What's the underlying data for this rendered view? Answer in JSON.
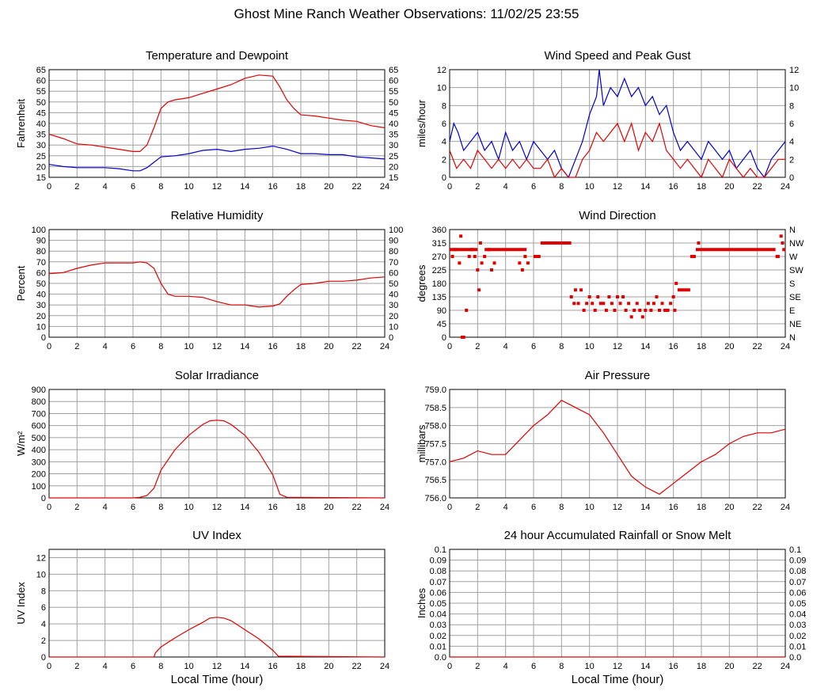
{
  "page": {
    "title": "Ghost Mine Ranch Weather Observations: 11/02/25 23:55"
  },
  "colors": {
    "red": "#e00000",
    "blue": "#0000cc",
    "grid": "#a0a0a0"
  },
  "chart_data": [
    {
      "id": "temperature",
      "type": "line",
      "title": "Temperature and Dewpoint",
      "xlabel": "",
      "ylabel": "Fahrenheit",
      "xlim": [
        0,
        24
      ],
      "ylim": [
        15,
        65
      ],
      "yticks": [
        15,
        20,
        25,
        30,
        35,
        40,
        45,
        50,
        55,
        60,
        65
      ],
      "right_ticks": [
        "15",
        "20",
        "25",
        "30",
        "35",
        "40",
        "45",
        "50",
        "55",
        "60",
        "65"
      ],
      "grid": true,
      "series": [
        {
          "color": "red",
          "x": [
            0,
            1,
            2,
            3,
            4,
            5,
            6,
            6.5,
            7,
            7.5,
            8,
            8.5,
            9,
            10,
            11,
            12,
            13,
            14,
            15,
            16,
            16.5,
            17,
            17.5,
            18,
            19,
            20,
            21,
            22,
            23,
            24
          ],
          "y": [
            35,
            33,
            30.5,
            30,
            29,
            28,
            27,
            27,
            30,
            38,
            47,
            50,
            51,
            52,
            54,
            56,
            58,
            61,
            62.5,
            62,
            57,
            51,
            47,
            44,
            43.5,
            42.5,
            41.5,
            41,
            39,
            38
          ]
        },
        {
          "color": "blue",
          "x": [
            0,
            1,
            2,
            3,
            4,
            5,
            6,
            6.5,
            7,
            7.5,
            8,
            9,
            10,
            11,
            12,
            13,
            14,
            15,
            16,
            17,
            18,
            19,
            20,
            21,
            22,
            23,
            24
          ],
          "y": [
            21,
            20,
            19.5,
            19.5,
            19.5,
            19,
            18,
            18,
            19.5,
            22,
            24.5,
            25,
            26,
            27.5,
            28,
            27,
            28,
            28.5,
            29.5,
            28,
            26,
            26,
            25.5,
            25.5,
            24.5,
            24,
            23.5
          ]
        }
      ]
    },
    {
      "id": "wind-speed",
      "type": "line",
      "title": "Wind Speed and Peak Gust",
      "xlabel": "",
      "ylabel": "miles/hour",
      "xlim": [
        0,
        24
      ],
      "ylim": [
        0,
        12
      ],
      "yticks": [
        0,
        2,
        4,
        6,
        8,
        10,
        12
      ],
      "right_ticks": [
        "0",
        "2",
        "4",
        "6",
        "8",
        "10",
        "12"
      ],
      "grid": true,
      "series": [
        {
          "color": "blue",
          "x": [
            0,
            0.3,
            0.6,
            1,
            1.5,
            2,
            2.5,
            3,
            3.5,
            4,
            4.5,
            5,
            5.5,
            6,
            6.5,
            7,
            7.5,
            8,
            8.5,
            9,
            9.5,
            10,
            10.5,
            10.7,
            11,
            11.5,
            12,
            12.5,
            13,
            13.5,
            14,
            14.5,
            15,
            15.5,
            16,
            16.5,
            17,
            17.5,
            18,
            18.5,
            19,
            19.5,
            20,
            20.5,
            21,
            21.5,
            22,
            22.5,
            23,
            23.5,
            24
          ],
          "y": [
            4,
            6,
            5,
            3,
            4,
            5,
            3,
            4,
            2,
            5,
            3,
            4,
            2,
            4,
            3,
            2,
            3,
            1,
            0,
            2,
            4,
            7,
            9,
            12,
            8,
            10,
            9,
            11,
            9,
            10,
            8,
            9,
            7,
            8,
            5,
            3,
            4,
            3,
            2,
            4,
            3,
            2,
            3,
            1,
            2,
            3,
            1,
            0,
            2,
            3,
            4
          ]
        },
        {
          "color": "red",
          "x": [
            0,
            0.5,
            1,
            1.5,
            2,
            2.5,
            3,
            3.5,
            4,
            4.5,
            5,
            5.5,
            6,
            6.5,
            7,
            7.5,
            8,
            8.5,
            9,
            9.5,
            10,
            10.5,
            11,
            11.5,
            12,
            12.5,
            13,
            13.5,
            14,
            14.5,
            15,
            15.5,
            16,
            16.5,
            17,
            17.5,
            18,
            18.5,
            19,
            19.5,
            20,
            20.5,
            21,
            21.5,
            22,
            22.5,
            23,
            23.5,
            24
          ],
          "y": [
            3,
            1,
            2,
            1,
            3,
            2,
            1,
            2,
            1,
            2,
            1,
            2,
            1,
            1,
            2,
            0,
            1,
            0,
            0,
            2,
            3,
            5,
            4,
            5,
            6,
            4,
            6,
            3,
            5,
            4,
            6,
            3,
            2,
            1,
            2,
            1,
            0,
            2,
            1,
            0,
            2,
            1,
            0,
            1,
            0,
            0,
            1,
            2,
            2
          ]
        }
      ]
    },
    {
      "id": "humidity",
      "type": "line",
      "title": "Relative Humidity",
      "xlabel": "",
      "ylabel": "Percent",
      "xlim": [
        0,
        24
      ],
      "ylim": [
        0,
        100
      ],
      "yticks": [
        0,
        10,
        20,
        30,
        40,
        50,
        60,
        70,
        80,
        90,
        100
      ],
      "right_ticks": [
        "0",
        "10",
        "20",
        "30",
        "40",
        "50",
        "60",
        "70",
        "80",
        "90",
        "100"
      ],
      "grid": true,
      "series": [
        {
          "color": "red",
          "x": [
            0,
            1,
            2,
            3,
            4,
            5,
            6,
            6.5,
            7,
            7.5,
            8,
            8.5,
            9,
            10,
            11,
            12,
            13,
            14,
            15,
            16,
            16.5,
            17,
            17.5,
            18,
            19,
            20,
            21,
            22,
            23,
            24
          ],
          "y": [
            59,
            60,
            64,
            67,
            69,
            69,
            69,
            70,
            69,
            64,
            50,
            40,
            38,
            38,
            37,
            33,
            30,
            30,
            28,
            29,
            31,
            38,
            44,
            49,
            50,
            52,
            52,
            53,
            55,
            56
          ]
        }
      ]
    },
    {
      "id": "wind-direction",
      "type": "scatter",
      "title": "Wind Direction",
      "xlabel": "",
      "ylabel": "degrees",
      "xlim": [
        0,
        24
      ],
      "ylim": [
        0,
        360
      ],
      "yticks": [
        0,
        45,
        90,
        135,
        180,
        225,
        270,
        315,
        360
      ],
      "right_ticks": [
        "N",
        "NE",
        "E",
        "SE",
        "S",
        "SW",
        "W",
        "NW",
        "N"
      ],
      "grid": true,
      "series": [
        {
          "color": "red",
          "segments": [
            {
              "x0": 0,
              "x1": 2,
              "y": 293
            },
            {
              "x0": 2.5,
              "x1": 5.5,
              "y": 293
            },
            {
              "x0": 6,
              "x1": 6.5,
              "y": 270
            },
            {
              "x0": 6.5,
              "x1": 8.7,
              "y": 315
            },
            {
              "x0": 17.2,
              "x1": 17.6,
              "y": 270
            },
            {
              "x0": 17.6,
              "x1": 23.3,
              "y": 293
            },
            {
              "x0": 16.3,
              "x1": 17.2,
              "y": 158
            },
            {
              "x0": 23.3,
              "x1": 23.6,
              "y": 270
            }
          ],
          "x": [
            0.2,
            0.4,
            0.7,
            0.8,
            0.9,
            1.0,
            1.2,
            1.4,
            1.6,
            1.8,
            2.0,
            2.1,
            2.2,
            2.3,
            2.5,
            2.8,
            3.0,
            3.2,
            5.0,
            5.2,
            5.4,
            5.6,
            8.7,
            8.9,
            9.0,
            9.2,
            9.4,
            9.6,
            9.8,
            10.0,
            10.2,
            10.4,
            10.6,
            10.8,
            11.0,
            11.2,
            11.4,
            11.6,
            11.8,
            12.0,
            12.2,
            12.4,
            12.6,
            12.8,
            13.0,
            13.2,
            13.4,
            13.6,
            13.8,
            14.0,
            14.2,
            14.4,
            14.6,
            14.8,
            15.0,
            15.2,
            15.4,
            15.6,
            15.8,
            16.0,
            16.1,
            16.2,
            17.8,
            23.7,
            23.8,
            23.9
          ],
          "y": [
            270,
            293,
            248,
            338,
            0,
            0,
            90,
            270,
            293,
            270,
            225,
            158,
            315,
            248,
            270,
            293,
            225,
            248,
            248,
            225,
            270,
            248,
            135,
            113,
            158,
            113,
            158,
            90,
            113,
            135,
            113,
            90,
            135,
            113,
            113,
            90,
            135,
            113,
            90,
            135,
            113,
            135,
            90,
            113,
            68,
            90,
            113,
            90,
            68,
            90,
            113,
            90,
            113,
            135,
            90,
            113,
            90,
            90,
            113,
            135,
            90,
            180,
            315,
            338,
            315,
            293
          ]
        }
      ]
    },
    {
      "id": "solar",
      "type": "line",
      "title": "Solar Irradiance",
      "xlabel": "",
      "ylabel": "W/m²",
      "xlim": [
        0,
        24
      ],
      "ylim": [
        0,
        900
      ],
      "yticks": [
        0,
        100,
        200,
        300,
        400,
        500,
        600,
        700,
        800,
        900
      ],
      "right_ticks": [],
      "grid": true,
      "series": [
        {
          "color": "red",
          "x": [
            0,
            6,
            6.5,
            7,
            7.5,
            8,
            9,
            10,
            11,
            11.5,
            12,
            12.5,
            13,
            14,
            15,
            16,
            16.5,
            17,
            24
          ],
          "y": [
            0,
            0,
            5,
            20,
            80,
            230,
            400,
            520,
            610,
            640,
            645,
            640,
            610,
            520,
            380,
            190,
            30,
            5,
            0
          ]
        }
      ]
    },
    {
      "id": "pressure",
      "type": "line",
      "title": "Air Pressure",
      "xlabel": "",
      "ylabel": "millibars",
      "xlim": [
        0,
        24
      ],
      "ylim": [
        756.0,
        759.0
      ],
      "yticks": [
        756.0,
        756.5,
        757.0,
        757.5,
        758.0,
        758.5,
        759.0
      ],
      "right_ticks": [],
      "grid": true,
      "series": [
        {
          "color": "red",
          "x": [
            0,
            1,
            2,
            3,
            4,
            5,
            6,
            7,
            8,
            8.5,
            9,
            10,
            11,
            12,
            13,
            14,
            15,
            16,
            17,
            18,
            19,
            20,
            21,
            22,
            23,
            24
          ],
          "y": [
            757.0,
            757.1,
            757.3,
            757.2,
            757.2,
            757.6,
            758.0,
            758.3,
            758.7,
            758.6,
            758.5,
            758.3,
            757.8,
            757.2,
            756.6,
            756.3,
            756.1,
            756.4,
            756.7,
            757.0,
            757.2,
            757.5,
            757.7,
            757.8,
            757.8,
            757.9
          ]
        }
      ]
    },
    {
      "id": "uv",
      "type": "line",
      "title": "UV Index",
      "xlabel": "Local Time (hour)",
      "ylabel": "UV Index",
      "xlim": [
        0,
        24
      ],
      "ylim": [
        0,
        13
      ],
      "yticks": [
        0,
        2,
        4,
        6,
        8,
        10,
        12
      ],
      "right_ticks": [],
      "grid": true,
      "series": [
        {
          "color": "red",
          "x": [
            0,
            7.5,
            7.6,
            8,
            9,
            10,
            11,
            11.5,
            12,
            12.5,
            13,
            14,
            15,
            16,
            16.4,
            24
          ],
          "y": [
            0,
            0,
            0.5,
            1.2,
            2.3,
            3.3,
            4.2,
            4.7,
            4.8,
            4.7,
            4.4,
            3.3,
            2.2,
            0.8,
            0.1,
            0
          ]
        }
      ]
    },
    {
      "id": "rain",
      "type": "line",
      "title": "24 hour Accumulated Rainfall or Snow Melt",
      "xlabel": "Local Time (hour)",
      "ylabel": "Inches",
      "xlim": [
        0,
        24
      ],
      "ylim": [
        0,
        0.1
      ],
      "yticks": [
        0,
        0.01,
        0.02,
        0.03,
        0.04,
        0.05,
        0.06,
        0.07,
        0.08,
        0.09,
        0.1
      ],
      "ytick_labels": [
        "0.0",
        "0.01",
        "0.02",
        "0.03",
        "0.04",
        "0.05",
        "0.06",
        "0.07",
        "0.08",
        "0.09",
        "0.1"
      ],
      "right_ticks": [
        "0.0",
        "0.01",
        "0.02",
        "0.03",
        "0.04",
        "0.05",
        "0.06",
        "0.07",
        "0.08",
        "0.09",
        "0.1"
      ],
      "grid": true,
      "series": [
        {
          "color": "red",
          "x": [
            0,
            24
          ],
          "y": [
            0,
            0
          ]
        }
      ]
    }
  ]
}
